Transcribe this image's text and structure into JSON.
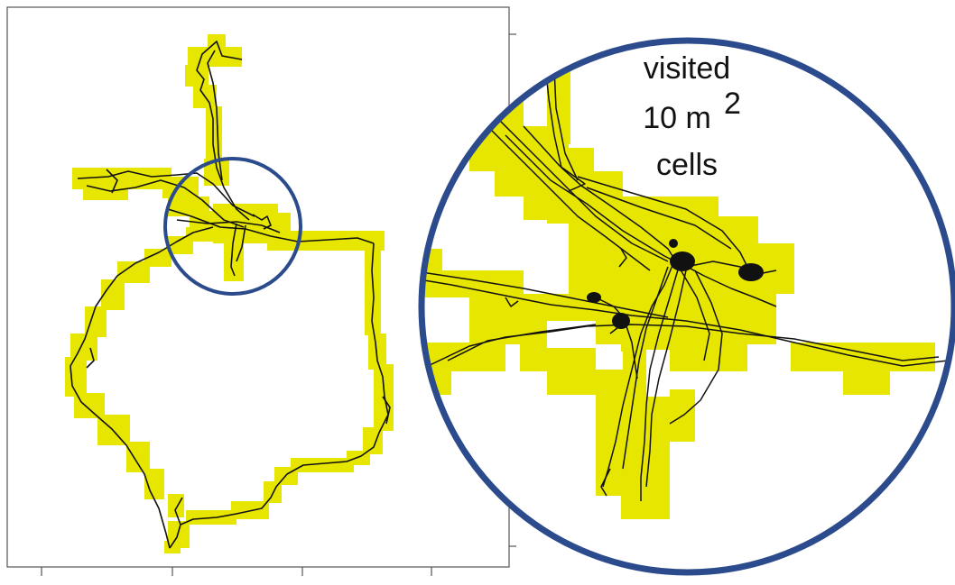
{
  "annotation": {
    "line1": "visited",
    "line2_value": "10 m",
    "line2_exponent": "2",
    "line3": "cells"
  },
  "colors": {
    "cell_fill": "#e6e600",
    "track": "#111111",
    "circle": "#2b4b8c",
    "frame": "#555555",
    "background": "#ffffff"
  }
}
